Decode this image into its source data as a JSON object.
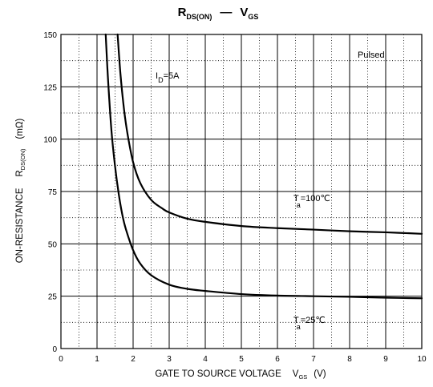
{
  "chart_data": {
    "type": "line",
    "title_main": "R",
    "title_sub": "DS(ON)",
    "title_dash": "—",
    "title_main2": "V",
    "title_sub2": "GS",
    "xlabel": "GATE TO SOURCE VOLTAGE",
    "xlabel_sym": "V",
    "xlabel_sub": "GS",
    "xlabel_unit": "(V)",
    "ylabel": "ON-RESISTANCE",
    "ylabel_sym": "R",
    "ylabel_sub": "DS(ON)",
    "ylabel_unit": "(mΩ)",
    "xlim": [
      0,
      10
    ],
    "ylim": [
      0,
      150
    ],
    "xticks": [
      "0",
      "1",
      "2",
      "3",
      "4",
      "5",
      "6",
      "7",
      "8",
      "9",
      "10"
    ],
    "yticks": [
      "0",
      "25",
      "50",
      "75",
      "100",
      "125",
      "150"
    ],
    "grid": true,
    "annotations": {
      "pulsed": "Pulsed",
      "id_sym": "I",
      "id_sub": "D",
      "id_val": "=5A",
      "ta_sym": "T",
      "ta_sub": "a",
      "ta100_val": "=100℃",
      "ta25_val": "=25℃"
    },
    "series": [
      {
        "name": "Ta=100℃",
        "x": [
          1.57,
          1.65,
          1.75,
          1.85,
          2.0,
          2.2,
          2.5,
          2.8,
          3.0,
          3.5,
          4.0,
          5.0,
          6.0,
          7.0,
          8.0,
          9.0,
          10.0
        ],
        "y": [
          150,
          131,
          114,
          102,
          89,
          79,
          71,
          67,
          65,
          62,
          60.5,
          58.5,
          57.5,
          56.8,
          56,
          55.5,
          54.8
        ]
      },
      {
        "name": "Ta=25℃",
        "x": [
          1.24,
          1.3,
          1.4,
          1.5,
          1.6,
          1.7,
          1.8,
          2.0,
          2.2,
          2.5,
          3.0,
          3.5,
          4.0,
          5.0,
          6.0,
          7.0,
          8.0,
          9.0,
          10.0
        ],
        "y": [
          150,
          130,
          104,
          87,
          74,
          64,
          57,
          47,
          40.5,
          35,
          30.5,
          28.5,
          27.5,
          26,
          25.3,
          25,
          24.7,
          24.3,
          24
        ]
      }
    ]
  }
}
